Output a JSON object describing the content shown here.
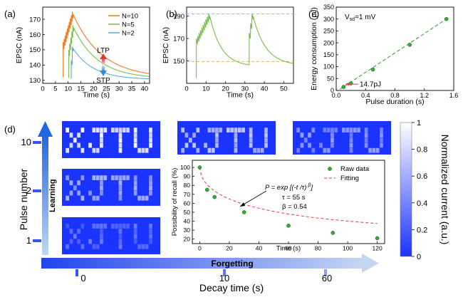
{
  "panels": {
    "a": {
      "label": "(a)"
    },
    "b": {
      "label": "(b)"
    },
    "c": {
      "label": "(c)"
    },
    "d": {
      "label": "(d)"
    }
  },
  "chart_data": [
    {
      "id": "a",
      "type": "line",
      "xlabel": "Time (s)",
      "ylabel": "EPSC (nA)",
      "xlim": [
        0,
        42
      ],
      "ylim": [
        128,
        178
      ],
      "xticks": [
        0,
        5,
        10,
        15,
        20,
        25,
        30,
        35,
        40
      ],
      "yticks": [
        130,
        140,
        150,
        160,
        170
      ],
      "legend_position": "top-right",
      "annotations": {
        "up": "LTP",
        "down": "STP"
      },
      "series": [
        {
          "name": "N=10",
          "color": "#f47a20",
          "pulses": 10,
          "base": 132.0,
          "t0": 8.0,
          "dt": 0.4,
          "start_level": 155,
          "peak": 175,
          "ripple": 4.5,
          "tau": 7.0,
          "end_level": 138.5
        },
        {
          "name": "N=5",
          "color": "#78c043",
          "pulses": 5,
          "base": 131.5,
          "t0": 10.2,
          "dt": 0.4,
          "start_level": 150,
          "peak": 166,
          "ripple": 4.0,
          "tau": 6.0,
          "end_level": 136.5
        },
        {
          "name": "N=2",
          "color": "#5aaed8",
          "pulses": 2,
          "base": 131.0,
          "t0": 11.2,
          "dt": 0.4,
          "start_level": 143,
          "peak": 152,
          "ripple": 3.0,
          "tau": 5.0,
          "end_level": 134.5
        }
      ]
    },
    {
      "id": "b",
      "type": "line",
      "xlabel": "Time (s)",
      "ylabel": "EPSC (nA)",
      "xlim": [
        0,
        55
      ],
      "ylim": [
        130,
        198
      ],
      "xticks": [
        0,
        10,
        20,
        30,
        40,
        50
      ],
      "yticks": [
        150,
        170,
        190
      ],
      "hlines": [
        192,
        149.5
      ],
      "series": [
        {
          "color": "#78c043",
          "base": 134.5,
          "bursts": [
            {
              "t0": 5.0,
              "pulses": 10,
              "dt": 0.7,
              "start_level": 170,
              "peak": 192,
              "ripple": 5.0,
              "tau": 6.0,
              "floor": 145
            },
            {
              "t0": 32.2,
              "pulses": 3,
              "dt": 0.7,
              "start_level": 175,
              "peak": 192,
              "ripple": 5.0,
              "tau": 6.5,
              "floor": 146
            }
          ]
        }
      ]
    },
    {
      "id": "c",
      "type": "scatter",
      "xlabel": "Pulse duration (s)",
      "ylabel": "Energy consumption (pJ)",
      "xlim": [
        0,
        1.6
      ],
      "ylim": [
        0,
        350
      ],
      "xticks": [
        0.0,
        0.4,
        0.8,
        1.2,
        1.6
      ],
      "yticks": [
        0,
        50,
        100,
        150,
        200,
        250,
        300,
        350
      ],
      "points": [
        [
          0.1,
          14.7
        ],
        [
          0.2,
          30
        ],
        [
          0.5,
          88
        ],
        [
          1.0,
          192
        ],
        [
          1.5,
          300
        ]
      ],
      "trend": [
        [
          0.05,
          5
        ],
        [
          1.5,
          300
        ]
      ],
      "color": "#3aa53a",
      "condition": {
        "pre": "V",
        "sub": "sd",
        "post": "=1 mV"
      },
      "min_label": "14.7pJ"
    },
    {
      "id": "d-inset",
      "type": "scatter",
      "xlabel": "Time (s)",
      "ylabel": "Possibility of recall (%)",
      "xlim": [
        -5,
        125
      ],
      "ylim": [
        15,
        108
      ],
      "xticks": [
        0,
        20,
        40,
        60,
        80,
        100,
        120
      ],
      "yticks": [
        20,
        30,
        40,
        50,
        60,
        70,
        80,
        90,
        100
      ],
      "legend_position": "top-right",
      "series": [
        {
          "name": "Raw data",
          "color": "#3aa53a",
          "points": [
            [
              0,
              100
            ],
            [
              5,
              75
            ],
            [
              10,
              67
            ],
            [
              30,
              50
            ],
            [
              60,
              35
            ],
            [
              90,
              27
            ],
            [
              120,
              21
            ]
          ]
        },
        {
          "name": "Fitting",
          "color": "#e53935",
          "model": {
            "A": 80,
            "tau": 55,
            "beta": 0.54,
            "offset": 20
          }
        }
      ],
      "formula": {
        "lhs": "P = exp",
        "body": "[(-t /τ)",
        "exp": "β",
        "close": "]"
      },
      "params": [
        "τ = 55 s",
        "β = 0.54"
      ]
    }
  ],
  "patterns": {
    "word": "XJTU",
    "title_y": "Pulse number",
    "title_x": "Decay time (s)",
    "learning": "Learning",
    "forgetting": "Forgetting",
    "pulse_labels": [
      "10",
      "2",
      "1"
    ],
    "decay_labels": [
      "0",
      "10",
      "60"
    ],
    "colorbar": {
      "label": "Normalized current (a.u.)",
      "ticks": [
        "1",
        "0.8",
        "0.6",
        "0.4",
        "0.2",
        "0"
      ]
    },
    "tiles": [
      {
        "fg": 0.95,
        "bg": 0.08
      },
      {
        "fg": 0.72,
        "bg": 0.12
      },
      {
        "fg": 0.52,
        "bg": 0.15
      },
      {
        "fg": 0.62,
        "bg": 0.12
      },
      {
        "fg": 0.35,
        "bg": 0.15
      }
    ]
  }
}
